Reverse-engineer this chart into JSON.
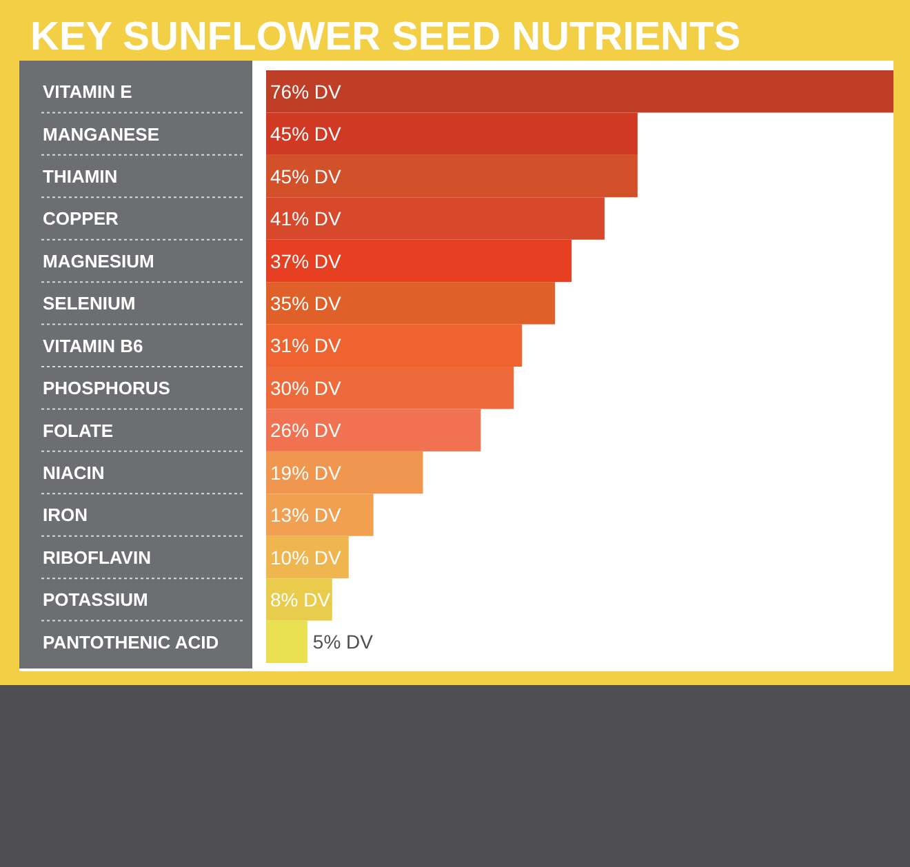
{
  "chart_data": {
    "type": "bar",
    "orientation": "horizontal",
    "title": "KEY SUNFLOWER SEED NUTRIENTS",
    "categories": [
      "VITAMIN E",
      "MANGANESE",
      "THIAMIN",
      "COPPER",
      "MAGNESIUM",
      "SELENIUM",
      "VITAMIN B6",
      "PHOSPHORUS",
      "FOLATE",
      "NIACIN",
      "IRON",
      "RIBOFLAVIN",
      "POTASSIUM",
      "PANTOTHENIC ACID"
    ],
    "values": [
      76,
      45,
      45,
      41,
      37,
      35,
      31,
      30,
      26,
      19,
      13,
      10,
      8,
      5
    ],
    "value_labels": [
      "76% DV",
      "45% DV",
      "45% DV",
      "41% DV",
      "37% DV",
      "35% DV",
      "31% DV",
      "30% DV",
      "26% DV",
      "19% DV",
      "13% DV",
      "10% DV",
      "8% DV",
      "5% DV"
    ],
    "colors": [
      "#bf3f26",
      "#d03a25",
      "#d2502a",
      "#d8482a",
      "#e63f22",
      "#e0602a",
      "#ee6330",
      "#ef6a3a",
      "#f07250",
      "#f0964e",
      "#f0a050",
      "#efb54f",
      "#eacc4c",
      "#e8e050"
    ],
    "tick_labels": "y"
  }
}
